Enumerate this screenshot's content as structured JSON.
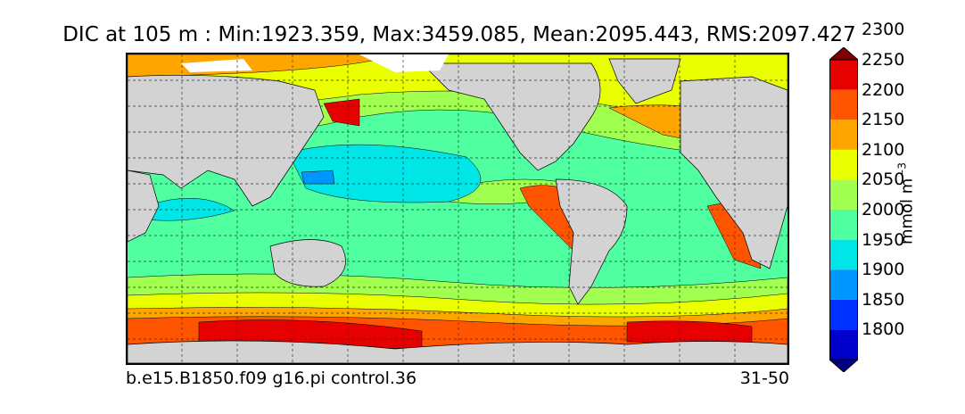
{
  "title": "DIC at 105 m : Min:1923.359, Max:3459.085, Mean:2095.443, RMS:2097.427",
  "footer": {
    "case_name": "b.e15.B1850.f09 g16.pi control.36",
    "years": "31-50"
  },
  "colorbar": {
    "unit_base": "mmol m",
    "unit_exp": "−3",
    "ticks": [
      "1800",
      "1850",
      "1900",
      "1950",
      "2000",
      "2050",
      "2100",
      "2150",
      "2200",
      "2250",
      "2300"
    ],
    "bins": [
      {
        "range": "<1775",
        "color": "#000080"
      },
      {
        "range": "1775-1825",
        "color": "#0000cd"
      },
      {
        "range": "1825-1875",
        "color": "#0032ff"
      },
      {
        "range": "1875-1925",
        "color": "#0096ff"
      },
      {
        "range": "1925-1975",
        "color": "#00e6e6"
      },
      {
        "range": "1975-2025",
        "color": "#4fffa0"
      },
      {
        "range": "2025-2075",
        "color": "#a0ff4f"
      },
      {
        "range": "2075-2125",
        "color": "#eaff00"
      },
      {
        "range": "2125-2175",
        "color": "#ffa500"
      },
      {
        "range": "2175-2225",
        "color": "#ff5500"
      },
      {
        "range": "2225-2275",
        "color": "#e60000"
      },
      {
        "range": ">2275",
        "color": "#800000"
      }
    ]
  },
  "map": {
    "land_color": "#d3d3d3",
    "sea_ice_color": "#ffffff",
    "gridlines": "dashed"
  }
}
